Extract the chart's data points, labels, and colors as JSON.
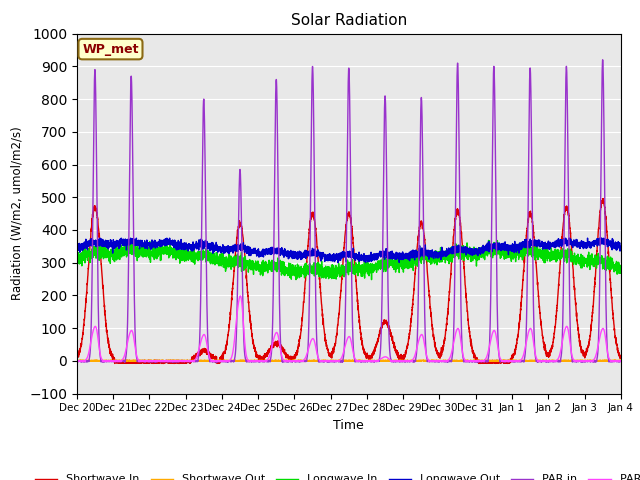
{
  "title": "Solar Radiation",
  "ylabel": "Radiation (W/m2, umol/m2/s)",
  "xlabel": "Time",
  "ylim": [
    -100,
    1000
  ],
  "bg_color": "#e8e8e8",
  "fig_bg_color": "#ffffff",
  "legend_label": "WP_met",
  "series": {
    "Shortwave In": {
      "color": "#dd0000",
      "lw": 1.0
    },
    "Shortwave Out": {
      "color": "#ffaa00",
      "lw": 1.0
    },
    "Longwave In": {
      "color": "#00dd00",
      "lw": 1.0
    },
    "Longwave Out": {
      "color": "#0000cc",
      "lw": 1.0
    },
    "PAR in": {
      "color": "#9933cc",
      "lw": 1.0
    },
    "PAR out": {
      "color": "#ff44ff",
      "lw": 1.0
    }
  },
  "tick_labels": [
    "Dec 20",
    "Dec 21",
    "Dec 22",
    "Dec 23",
    "Dec 24",
    "Dec 25",
    "Dec 26",
    "Dec 27",
    "Dec 28",
    "Dec 29",
    "Dec 30",
    "Dec 31",
    "Jan 1",
    "Jan 2",
    "Jan 3",
    "Jan 4"
  ],
  "n_days": 15,
  "pts_per_day": 288,
  "sw_in_amps": [
    470,
    0,
    0,
    30,
    420,
    55,
    450,
    450,
    120,
    420,
    460,
    0,
    450,
    470,
    490,
    0
  ],
  "par_in_amps": [
    890,
    870,
    0,
    800,
    585,
    860,
    900,
    895,
    810,
    805,
    910,
    900,
    895,
    900,
    920,
    0
  ],
  "par_out_amps": [
    85,
    75,
    0,
    65,
    160,
    70,
    55,
    60,
    10,
    65,
    80,
    75,
    80,
    85,
    80,
    0
  ],
  "lw_in_base": 290,
  "lw_out_base": 330
}
